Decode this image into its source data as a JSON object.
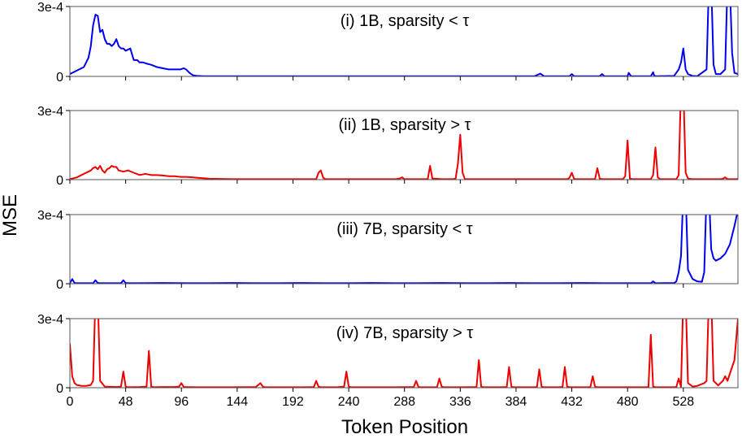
{
  "chart_data": {
    "type": "line",
    "xlabel": "Token Position",
    "ylabel": "MSE",
    "xlim": [
      0,
      575
    ],
    "xticks": [
      0,
      48,
      96,
      144,
      192,
      240,
      288,
      336,
      384,
      432,
      480,
      528
    ],
    "xtick_labels": [
      "0",
      "48",
      "96",
      "144",
      "192",
      "240",
      "288",
      "336",
      "384",
      "432",
      "480",
      "528"
    ],
    "ylim": [
      0,
      0.0003
    ],
    "yticks": [
      0,
      0.0003
    ],
    "ytick_labels": [
      "0",
      "3e-4"
    ],
    "grid": false,
    "panels": [
      {
        "label": "(i) 1B, sparsity < τ",
        "color": "#0000ee",
        "x": [
          0,
          4,
          8,
          12,
          16,
          18,
          20,
          22,
          24,
          26,
          28,
          30,
          32,
          34,
          36,
          38,
          40,
          42,
          44,
          46,
          48,
          50,
          52,
          55,
          58,
          60,
          63,
          66,
          70,
          75,
          80,
          85,
          90,
          95,
          98,
          100,
          103,
          106,
          110,
          115,
          120,
          140,
          200,
          260,
          300,
          360,
          400,
          405,
          408,
          410,
          430,
          432,
          434,
          440,
          456,
          458,
          460,
          480,
          481,
          483,
          485,
          500,
          502,
          503,
          505,
          520,
          524,
          526,
          528,
          530,
          532,
          536,
          540,
          548,
          550,
          552,
          554,
          556,
          560,
          564,
          566,
          568,
          570,
          572,
          575
        ],
        "y": [
          1e-05,
          2e-05,
          3e-05,
          4e-05,
          8e-05,
          0.00013,
          0.00022,
          0.000265,
          0.00026,
          0.00019,
          0.0002,
          0.00016,
          0.00014,
          0.00014,
          0.00013,
          0.00014,
          0.00016,
          0.00013,
          0.00012,
          0.00012,
          0.00011,
          0.000115,
          0.00012,
          7e-05,
          7e-05,
          6e-05,
          6e-05,
          5.5e-05,
          5e-05,
          4e-05,
          3.5e-05,
          3e-05,
          3e-05,
          3e-05,
          3.5e-05,
          3e-05,
          1.5e-05,
          5e-06,
          2e-06,
          1e-06,
          1e-06,
          1e-06,
          1e-06,
          1e-06,
          1e-06,
          1e-06,
          1e-06,
          1.2e-05,
          1e-06,
          1e-06,
          1e-06,
          1e-05,
          1e-06,
          1e-06,
          1e-06,
          1e-05,
          1e-06,
          1e-06,
          1.5e-05,
          1e-06,
          1e-06,
          1e-06,
          1.8e-05,
          2e-06,
          1e-06,
          2e-06,
          3e-05,
          6e-05,
          0.00012,
          3e-05,
          1e-05,
          2e-06,
          1e-06,
          3e-05,
          0.0004,
          0.0004,
          5e-05,
          1e-05,
          1e-05,
          3e-05,
          0.0004,
          0.0004,
          0.0001,
          1.5e-05,
          1e-05
        ],
        "_ignore": 0
      },
      {
        "label": "(ii) 1B, sparsity > τ",
        "color": "#ee0000",
        "x": [
          0,
          6,
          10,
          14,
          18,
          20,
          22,
          24,
          26,
          28,
          30,
          32,
          34,
          36,
          38,
          40,
          42,
          46,
          50,
          55,
          60,
          65,
          70,
          75,
          80,
          85,
          90,
          95,
          100,
          105,
          110,
          120,
          140,
          200,
          212,
          214,
          216,
          218,
          220,
          280,
          284,
          286,
          288,
          300,
          308,
          310,
          312,
          320,
          330,
          332,
          334,
          336,
          338,
          340,
          400,
          428,
          430,
          432,
          434,
          436,
          452,
          454,
          456,
          458,
          460,
          476,
          478,
          480,
          482,
          484,
          500,
          502,
          504,
          506,
          508,
          522,
          524,
          526,
          528,
          530,
          532,
          536,
          540,
          560,
          562,
          564,
          566,
          575
        ],
        "y": [
          2e-06,
          1e-05,
          2e-05,
          3e-05,
          4e-05,
          5e-05,
          5.5e-05,
          4.5e-05,
          6e-05,
          4e-05,
          3e-05,
          4.5e-05,
          5e-05,
          6e-05,
          5.5e-05,
          5.5e-05,
          4e-05,
          3.5e-05,
          4e-05,
          3e-05,
          2e-05,
          2.5e-05,
          2e-05,
          2e-05,
          1.8e-05,
          1.5e-05,
          1.5e-05,
          1.2e-05,
          1.2e-05,
          1e-05,
          8e-06,
          4e-06,
          2e-06,
          2e-06,
          2e-06,
          3e-05,
          4e-05,
          8e-06,
          2e-06,
          2e-06,
          5e-06,
          1e-05,
          2e-06,
          2e-06,
          2e-06,
          6e-05,
          5e-06,
          2e-06,
          2e-06,
          5e-06,
          7e-05,
          0.000195,
          3e-05,
          2e-06,
          2e-06,
          2e-06,
          8e-06,
          3e-05,
          3e-06,
          2e-06,
          2e-06,
          5e-05,
          5e-06,
          2e-06,
          2e-06,
          2e-06,
          1.5e-05,
          0.00017,
          5e-06,
          2e-06,
          2e-06,
          2e-05,
          0.00014,
          1e-05,
          2e-06,
          2e-06,
          2e-05,
          0.0004,
          0.0004,
          3e-05,
          5e-06,
          2e-06,
          2e-06,
          2e-06,
          4e-06,
          1e-05,
          2e-06,
          2e-06
        ]
      },
      {
        "label": "(iii) 7B, sparsity < τ",
        "color": "#0000ee",
        "x": [
          0,
          2,
          4,
          6,
          20,
          22,
          24,
          26,
          44,
          46,
          48,
          50,
          60,
          80,
          100,
          120,
          140,
          160,
          180,
          200,
          220,
          240,
          260,
          280,
          300,
          320,
          340,
          360,
          380,
          400,
          420,
          440,
          460,
          480,
          500,
          502,
          504,
          506,
          520,
          522,
          524,
          526,
          528,
          530,
          532,
          536,
          540,
          544,
          546,
          548,
          550,
          552,
          554,
          556,
          560,
          564,
          568,
          572,
          575
        ],
        "y": [
          2e-06,
          2e-05,
          3e-06,
          2e-06,
          2e-06,
          1.5e-05,
          3e-06,
          2e-06,
          2e-06,
          1.5e-05,
          3e-06,
          2e-06,
          2e-06,
          3e-06,
          2e-06,
          2e-06,
          3e-06,
          2e-06,
          2e-06,
          3e-06,
          2e-06,
          2e-06,
          3e-06,
          2e-06,
          2e-06,
          3e-06,
          2e-06,
          2e-06,
          3e-06,
          2e-06,
          2e-06,
          3e-06,
          2e-06,
          2e-06,
          2e-06,
          1e-05,
          2e-06,
          2e-06,
          3e-06,
          1e-05,
          5e-05,
          0.00012,
          0.0004,
          0.0004,
          6e-05,
          2e-05,
          1e-05,
          8e-06,
          5e-05,
          0.0004,
          0.0004,
          0.00015,
          0.00011,
          0.0001,
          0.00011,
          0.00013,
          0.00017,
          0.00025,
          0.00032
        ]
      },
      {
        "label": "(iv) 7B, sparsity > τ",
        "color": "#ee0000",
        "x": [
          0,
          2,
          4,
          6,
          10,
          14,
          18,
          20,
          22,
          24,
          26,
          30,
          40,
          44,
          46,
          48,
          50,
          60,
          66,
          68,
          70,
          72,
          80,
          90,
          94,
          96,
          98,
          110,
          140,
          160,
          164,
          166,
          168,
          180,
          200,
          210,
          212,
          214,
          216,
          230,
          236,
          238,
          240,
          242,
          244,
          260,
          280,
          296,
          298,
          300,
          302,
          316,
          318,
          320,
          322,
          324,
          340,
          350,
          352,
          354,
          356,
          358,
          370,
          376,
          378,
          380,
          382,
          384,
          400,
          402,
          404,
          406,
          408,
          420,
          424,
          426,
          428,
          430,
          432,
          446,
          448,
          450,
          452,
          454,
          470,
          496,
          498,
          500,
          502,
          504,
          520,
          522,
          524,
          526,
          528,
          530,
          532,
          536,
          540,
          546,
          548,
          550,
          552,
          554,
          558,
          560,
          562,
          564,
          566,
          568,
          572,
          575
        ],
        "y": [
          0.00019,
          5e-05,
          2e-05,
          1.2e-05,
          8e-06,
          8e-06,
          1.2e-05,
          3e-05,
          0.0004,
          0.0004,
          3e-05,
          5e-06,
          3e-06,
          5e-06,
          7e-05,
          5e-06,
          2e-06,
          3e-06,
          5e-06,
          0.00016,
          5e-06,
          2e-06,
          3e-06,
          3e-06,
          5e-06,
          2e-05,
          3e-06,
          2e-06,
          2e-06,
          3e-06,
          2e-05,
          5e-06,
          2e-06,
          2e-06,
          2e-06,
          3e-06,
          3e-05,
          5e-06,
          2e-06,
          2e-06,
          5e-06,
          7e-05,
          5e-06,
          2e-06,
          2e-06,
          2e-06,
          2e-06,
          3e-06,
          3e-05,
          3e-06,
          2e-06,
          2e-06,
          4e-05,
          5e-06,
          2e-06,
          2e-06,
          2e-06,
          3e-06,
          0.00012,
          5e-06,
          2e-06,
          2e-06,
          2e-06,
          3e-06,
          9e-05,
          5e-06,
          2e-06,
          2e-06,
          2e-06,
          3e-06,
          8e-05,
          5e-06,
          2e-06,
          2e-06,
          3e-06,
          9e-05,
          5e-06,
          2e-06,
          2e-06,
          2e-06,
          3e-06,
          5e-05,
          5e-06,
          2e-06,
          2e-06,
          2e-06,
          3e-06,
          0.00023,
          5e-06,
          2e-06,
          2e-06,
          3e-06,
          4e-05,
          4e-06,
          0.0004,
          0.0004,
          2e-05,
          5e-06,
          8e-06,
          2e-05,
          3e-05,
          0.0004,
          0.0004,
          3e-05,
          1e-05,
          2e-05,
          3e-05,
          5e-05,
          3e-05,
          6e-05,
          0.00012,
          0.0003
        ]
      }
    ]
  }
}
